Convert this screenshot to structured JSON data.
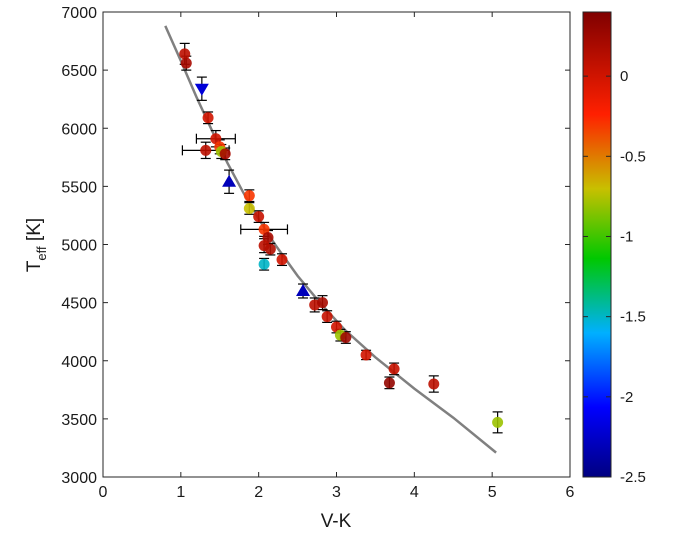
{
  "chart_data": {
    "type": "scatter",
    "xlabel": "V-K",
    "ylabel_main": "T",
    "ylabel_sub": "eff",
    "ylabel_tail": " [K]",
    "xlim": [
      0,
      6
    ],
    "ylim": [
      3000,
      7000
    ],
    "xticks": [
      0,
      1,
      2,
      3,
      4,
      5,
      6
    ],
    "yticks": [
      3000,
      3500,
      4000,
      4500,
      5000,
      5500,
      6000,
      6500,
      7000
    ],
    "colorbar": {
      "range": [
        -2.5,
        0.4
      ],
      "ticks": [
        0,
        -0.5,
        -1,
        -1.5,
        -2,
        -2.5
      ],
      "tick_labels": [
        "0",
        "-0.5",
        "-1",
        "-1.5",
        "-2",
        "-2.5"
      ]
    },
    "fit_curve": {
      "color": "#808080",
      "x": [
        0.8,
        1.0,
        1.2,
        1.4,
        1.6,
        1.8,
        2.0,
        2.2,
        2.5,
        2.8,
        3.1,
        3.5,
        4.0,
        4.5,
        5.05
      ],
      "y": [
        6880,
        6580,
        6270,
        5980,
        5700,
        5450,
        5220,
        5010,
        4730,
        4490,
        4270,
        4030,
        3760,
        3510,
        3210
      ]
    },
    "points": [
      {
        "x": 1.05,
        "y": 6640,
        "feh": 0.1,
        "marker": "circle",
        "yerr": 90
      },
      {
        "x": 1.07,
        "y": 6560,
        "feh": 0.2,
        "marker": "circle",
        "yerr": 60
      },
      {
        "x": 1.27,
        "y": 6340,
        "feh": -2.2,
        "marker": "triangle-down",
        "yerr": 100
      },
      {
        "x": 1.35,
        "y": 6090,
        "feh": 0.0,
        "marker": "circle",
        "yerr": 50
      },
      {
        "x": 1.32,
        "y": 5810,
        "feh": 0.1,
        "marker": "circle",
        "yerr": 70,
        "xerr": 0.3
      },
      {
        "x": 1.45,
        "y": 5910,
        "feh": 0.0,
        "marker": "circle",
        "yerr": 70,
        "xerr": 0.25
      },
      {
        "x": 1.5,
        "y": 5840,
        "feh": -0.3,
        "marker": "circle",
        "yerr": 60
      },
      {
        "x": 1.52,
        "y": 5800,
        "feh": -0.8,
        "marker": "circle",
        "yerr": 60
      },
      {
        "x": 1.57,
        "y": 5780,
        "feh": 0.2,
        "marker": "circle",
        "yerr": 50
      },
      {
        "x": 1.62,
        "y": 5540,
        "feh": -2.3,
        "marker": "triangle-up",
        "yerr": 100
      },
      {
        "x": 1.88,
        "y": 5420,
        "feh": -0.3,
        "marker": "circle",
        "yerr": 50
      },
      {
        "x": 1.88,
        "y": 5310,
        "feh": -0.7,
        "marker": "circle",
        "yerr": 50
      },
      {
        "x": 2.0,
        "y": 5240,
        "feh": 0.05,
        "marker": "circle",
        "yerr": 50
      },
      {
        "x": 2.07,
        "y": 5130,
        "feh": -0.3,
        "marker": "circle",
        "yerr": 60,
        "xerr": 0.3
      },
      {
        "x": 2.12,
        "y": 5060,
        "feh": 0.2,
        "marker": "circle",
        "yerr": 60
      },
      {
        "x": 2.07,
        "y": 4990,
        "feh": 0.1,
        "marker": "circle",
        "yerr": 60
      },
      {
        "x": 2.15,
        "y": 4960,
        "feh": 0.15,
        "marker": "circle",
        "yerr": 50
      },
      {
        "x": 2.07,
        "y": 4830,
        "feh": -1.5,
        "marker": "circle",
        "yerr": 50
      },
      {
        "x": 2.3,
        "y": 4870,
        "feh": 0.0,
        "marker": "circle",
        "yerr": 50
      },
      {
        "x": 2.57,
        "y": 4600,
        "feh": -2.3,
        "marker": "triangle-up",
        "yerr": 60
      },
      {
        "x": 2.72,
        "y": 4480,
        "feh": 0.1,
        "marker": "circle",
        "yerr": 60
      },
      {
        "x": 2.82,
        "y": 4500,
        "feh": 0.2,
        "marker": "circle",
        "yerr": 60
      },
      {
        "x": 2.88,
        "y": 4380,
        "feh": 0.05,
        "marker": "circle",
        "yerr": 50
      },
      {
        "x": 3.0,
        "y": 4290,
        "feh": 0.0,
        "marker": "circle",
        "yerr": 50
      },
      {
        "x": 3.05,
        "y": 4220,
        "feh": -0.8,
        "marker": "circle",
        "yerr": 50
      },
      {
        "x": 3.12,
        "y": 4200,
        "feh": 0.25,
        "marker": "circle",
        "yerr": 50
      },
      {
        "x": 3.38,
        "y": 4050,
        "feh": 0.0,
        "marker": "circle",
        "yerr": 40
      },
      {
        "x": 3.68,
        "y": 3810,
        "feh": 0.3,
        "marker": "circle",
        "yerr": 50
      },
      {
        "x": 3.74,
        "y": 3930,
        "feh": 0.05,
        "marker": "circle",
        "yerr": 50
      },
      {
        "x": 4.25,
        "y": 3800,
        "feh": 0.1,
        "marker": "circle",
        "yerr": 70
      },
      {
        "x": 5.07,
        "y": 3470,
        "feh": -0.8,
        "marker": "circle",
        "yerr": 90
      }
    ]
  }
}
